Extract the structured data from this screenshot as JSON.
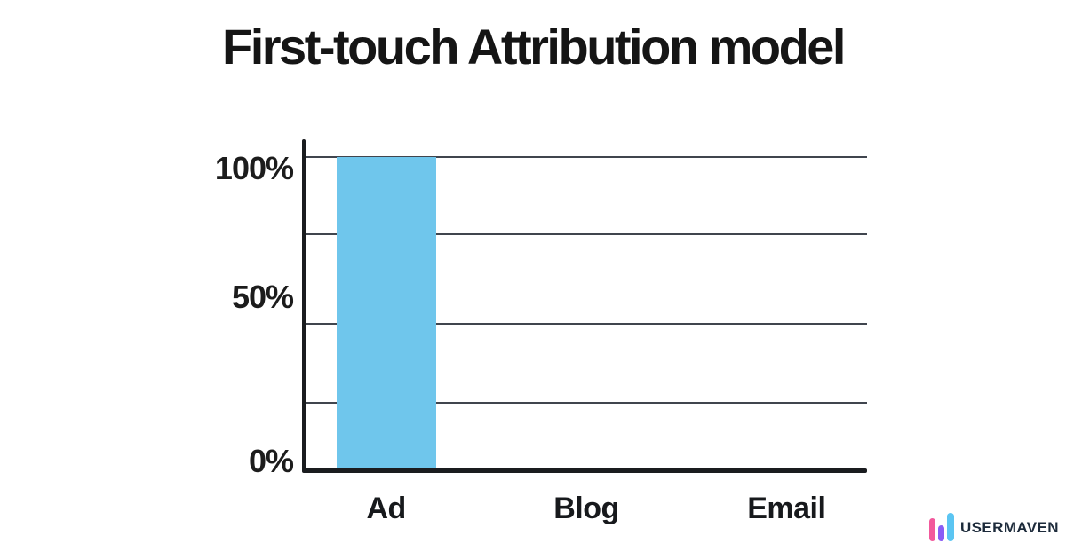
{
  "title": "First-touch Attribution model",
  "chart_data": {
    "type": "bar",
    "title": "First-touch Attribution model",
    "categories": [
      "Ad",
      "Blog",
      "Email"
    ],
    "values": [
      100,
      0,
      0
    ],
    "xlabel": "",
    "ylabel": "",
    "ylim": [
      0,
      100
    ],
    "ytick_labels": [
      "100%",
      "50%",
      "0%"
    ],
    "ytick_values": [
      100,
      50,
      0
    ],
    "gridline_values": [
      100,
      75,
      50,
      25
    ],
    "grid": true,
    "legend_position": "none",
    "bar_color": "#6FC6EC"
  },
  "colors": {
    "background": "#FFFFFF",
    "bar": "#6FC6EC",
    "axis": "#1A1C1F",
    "gridline": "#40454E",
    "text": "#1A1A1A"
  },
  "branding": {
    "logo_text": "USERMAVEN",
    "logo_icon": "three-bars-chart-logo",
    "colors": {
      "bar_pink": "#F2599C",
      "bar_purple": "#8A5CF5",
      "bar_blue": "#5BC5F2",
      "text": "#1D2B3B"
    }
  }
}
